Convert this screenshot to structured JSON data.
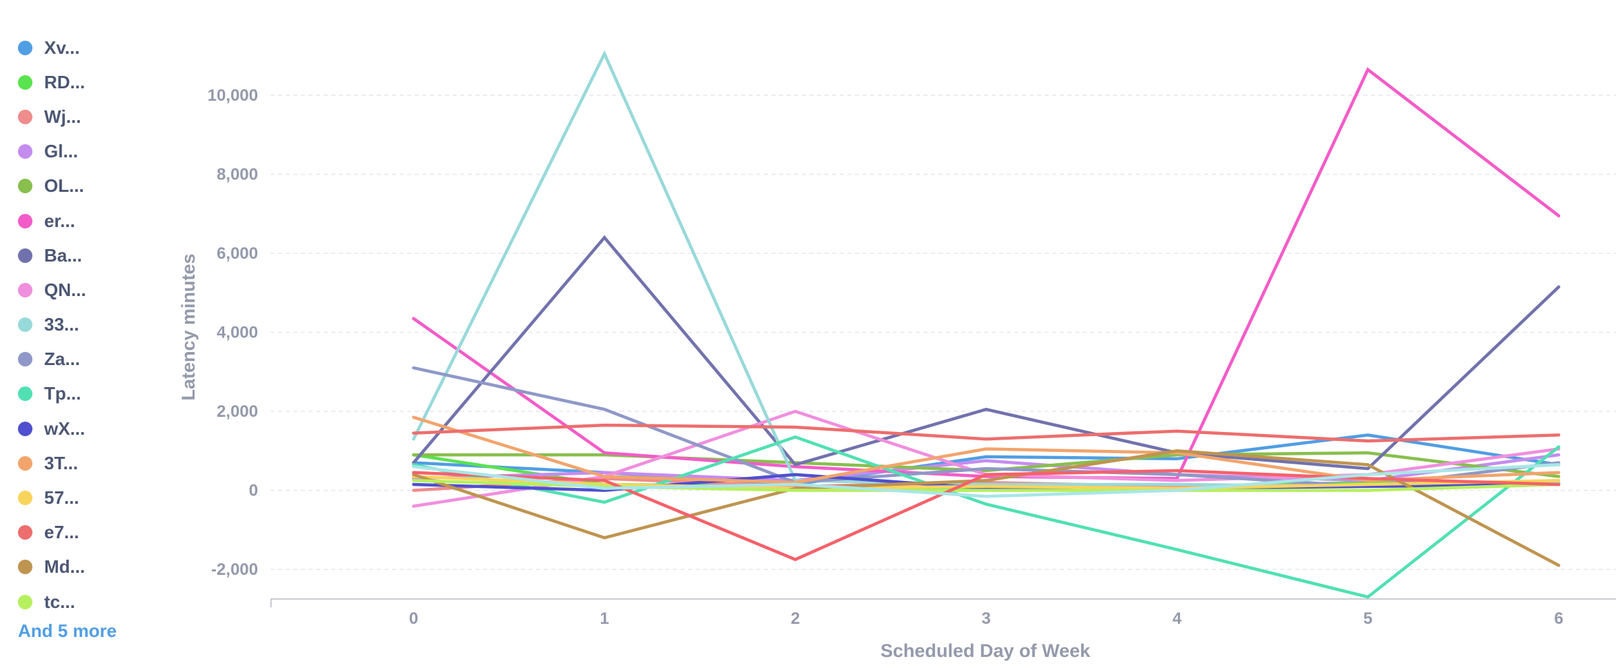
{
  "legend": {
    "more_label": "And 5 more"
  },
  "chart_data": {
    "type": "line",
    "xlabel": "Scheduled Day of Week",
    "ylabel": "Latency minutes",
    "x": [
      0,
      1,
      2,
      3,
      4,
      5,
      6
    ],
    "xlim": [
      -0.75,
      6.3
    ],
    "ylim": [
      -2750,
      11400
    ],
    "yticks": [
      -2000,
      0,
      2000,
      4000,
      6000,
      8000,
      10000
    ],
    "ytick_labels": [
      "-2,000",
      "0",
      "2,000",
      "4,000",
      "6,000",
      "8,000",
      "10,000"
    ],
    "xtick_labels": [
      "0",
      "1",
      "2",
      "3",
      "4",
      "5",
      "6"
    ],
    "grid": true,
    "legend_position": "left",
    "series": [
      {
        "name": "Xv...",
        "color": "#509ee3",
        "values": [
          700,
          450,
          150,
          850,
          800,
          1400,
          650
        ]
      },
      {
        "name": "RD...",
        "color": "#59e34f",
        "values": [
          900,
          150,
          100,
          50,
          100,
          200,
          150
        ]
      },
      {
        "name": "Wj...",
        "color": "#ef8c8c",
        "values": [
          0,
          300,
          100,
          200,
          100,
          150,
          200
        ]
      },
      {
        "name": "Gl...",
        "color": "#c58cf0",
        "values": [
          300,
          450,
          250,
          750,
          400,
          250,
          900
        ]
      },
      {
        "name": "OL...",
        "color": "#88bf4d",
        "values": [
          900,
          900,
          700,
          500,
          900,
          950,
          350
        ]
      },
      {
        "name": "er...",
        "color": "#f35cc8",
        "values": [
          4350,
          950,
          600,
          350,
          300,
          10650,
          6950
        ]
      },
      {
        "name": "Ba...",
        "color": "#7172ad",
        "values": [
          700,
          6400,
          650,
          2050,
          950,
          550,
          5150
        ]
      },
      {
        "name": "QN...",
        "color": "#f08fde",
        "values": [
          -400,
          350,
          2000,
          400,
          250,
          400,
          1050
        ]
      },
      {
        "name": "33...",
        "color": "#98d9d9",
        "values": [
          1300,
          11050,
          250,
          150,
          150,
          100,
          200
        ]
      },
      {
        "name": "Za...",
        "color": "#8f98c8",
        "values": [
          3100,
          2050,
          200,
          550,
          400,
          100,
          700
        ]
      },
      {
        "name": "Tp...",
        "color": "#51e0b2",
        "values": [
          650,
          -300,
          1350,
          -350,
          -1500,
          -2700,
          1100
        ]
      },
      {
        "name": "wX...",
        "color": "#4f4fcf",
        "values": [
          150,
          0,
          400,
          50,
          50,
          100,
          150
        ]
      },
      {
        "name": "3T...",
        "color": "#f2a46c",
        "values": [
          1850,
          350,
          200,
          1050,
          950,
          250,
          450
        ]
      },
      {
        "name": "57...",
        "color": "#f9d45c",
        "values": [
          350,
          150,
          50,
          100,
          50,
          150,
          250
        ]
      },
      {
        "name": "e7...",
        "color": "#ed6e6e",
        "values": [
          1450,
          1650,
          1600,
          1300,
          1500,
          1250,
          1400
        ]
      },
      {
        "name": "Md...",
        "color": "#bf9450",
        "values": [
          400,
          -1200,
          50,
          250,
          1000,
          650,
          -1900
        ]
      },
      {
        "name": "tc...",
        "color": "#b7f05f",
        "values": [
          250,
          100,
          0,
          0,
          0,
          0,
          150
        ]
      },
      {
        "color": "#f5616a",
        "values": [
          450,
          250,
          -1750,
          400,
          500,
          300,
          150
        ]
      },
      {
        "color": "#a9e6e6",
        "values": [
          600,
          50,
          150,
          -150,
          0,
          400,
          650
        ]
      }
    ]
  }
}
